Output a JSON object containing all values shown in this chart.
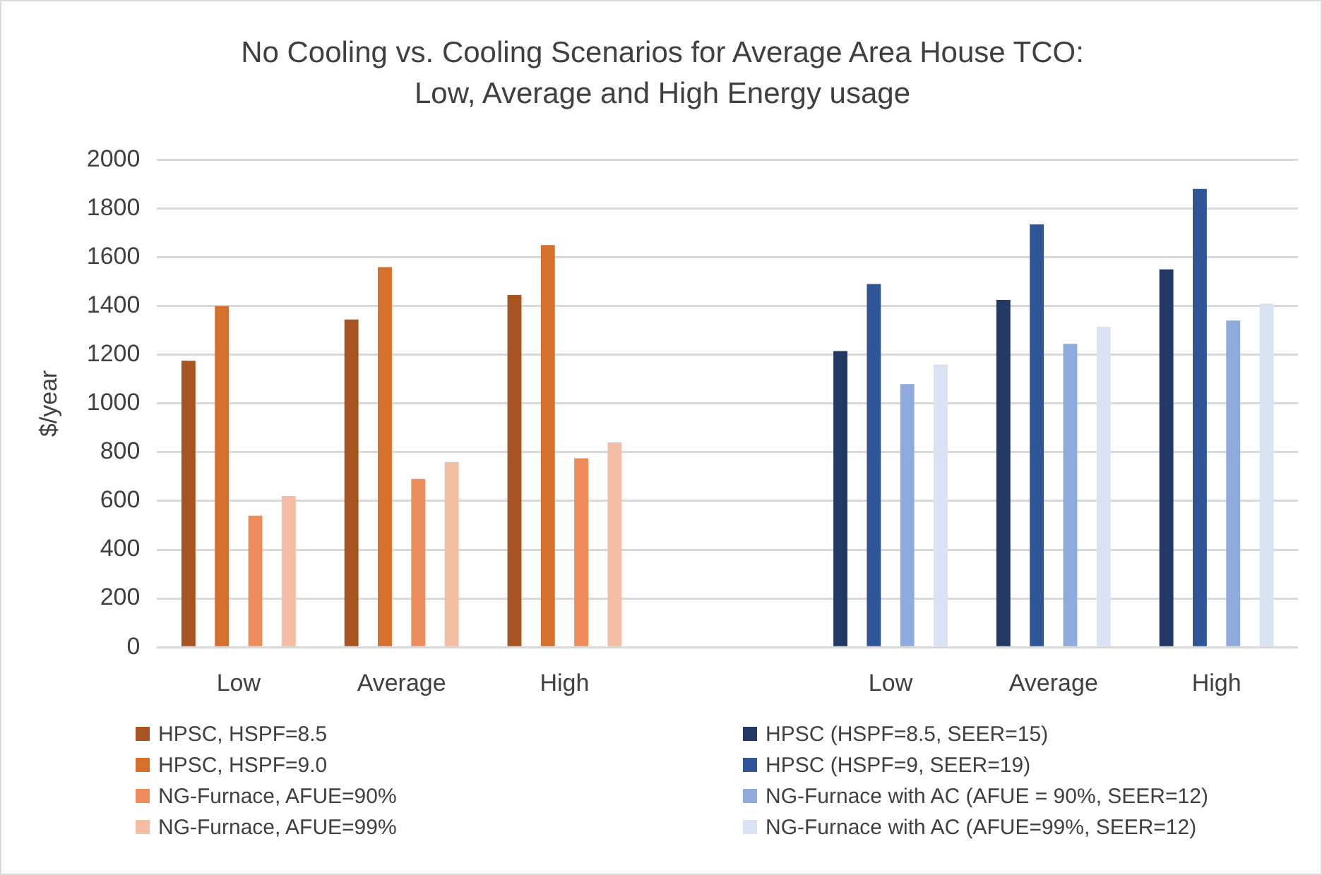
{
  "chart_data": {
    "type": "bar",
    "title": "No Cooling vs. Cooling Scenarios for Average Area House TCO: Low, Average and High Energy usage",
    "ylabel": "$/year",
    "categories": [
      "Low",
      "Average",
      "High",
      null,
      "Low",
      "Average",
      "High"
    ],
    "series": [
      {
        "name": "HPSC, HSPF=8.5",
        "color": "#a65522",
        "values": [
          1175,
          1345,
          1445,
          null,
          null,
          null,
          null
        ]
      },
      {
        "name": "HPSC, HSPF=9.0",
        "color": "#d46f2c",
        "values": [
          1400,
          1560,
          1650,
          null,
          null,
          null,
          null
        ]
      },
      {
        "name": "NG-Furnace, AFUE=90%",
        "color": "#ec8c5a",
        "values": [
          540,
          690,
          775,
          null,
          null,
          null,
          null
        ]
      },
      {
        "name": "NG-Furnace, AFUE=99%",
        "color": "#f3bca5",
        "values": [
          620,
          760,
          840,
          null,
          null,
          null,
          null
        ]
      },
      {
        "name": "HPSC (HSPF=8.5, SEER=15)",
        "color": "#213964",
        "values": [
          null,
          null,
          null,
          null,
          1215,
          1425,
          1550
        ]
      },
      {
        "name": "HPSC (HSPF=9, SEER=19)",
        "color": "#2f5597",
        "values": [
          null,
          null,
          null,
          null,
          1490,
          1735,
          1880
        ]
      },
      {
        "name": "NG-Furnace with AC (AFUE = 90%, SEER=12)",
        "color": "#8faadc",
        "values": [
          null,
          null,
          null,
          null,
          1080,
          1245,
          1340
        ]
      },
      {
        "name": "NG-Furnace with AC (AFUE=99%, SEER=12)",
        "color": "#dae3f3",
        "values": [
          null,
          null,
          null,
          null,
          1160,
          1315,
          1410
        ]
      }
    ],
    "ylim": [
      0,
      2000
    ],
    "yticks": [
      0,
      200,
      400,
      600,
      800,
      1000,
      1200,
      1400,
      1600,
      1800,
      2000
    ],
    "grid": "y",
    "legend": "bottom"
  }
}
